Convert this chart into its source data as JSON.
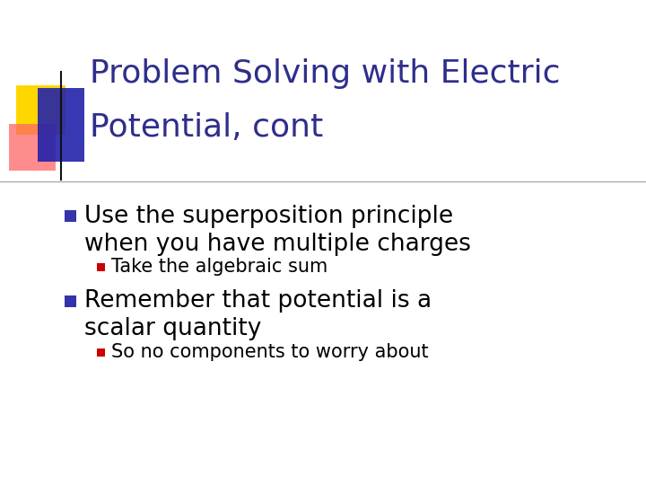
{
  "title_line1": "Problem Solving with Electric",
  "title_line2": "Potential, cont",
  "title_color": "#2E2E8B",
  "background_color": "#FFFFFF",
  "bullet1_text_line1": "Use the superposition principle",
  "bullet1_text_line2": "when you have multiple charges",
  "sub_bullet1_text": "Take the algebraic sum",
  "bullet2_text_line1": "Remember that potential is a",
  "bullet2_text_line2": "scalar quantity",
  "sub_bullet2_text": "So no components to worry about",
  "bullet_color": "#3333AA",
  "sub_bullet_color": "#CC0000",
  "body_text_color": "#000000",
  "line_color": "#AAAAAA",
  "logo_yellow": "#FFD700",
  "logo_red": "#FF6666",
  "logo_blue": "#2222AA",
  "title_fontsize": 26,
  "bullet_fontsize": 19,
  "sub_bullet_fontsize": 15
}
